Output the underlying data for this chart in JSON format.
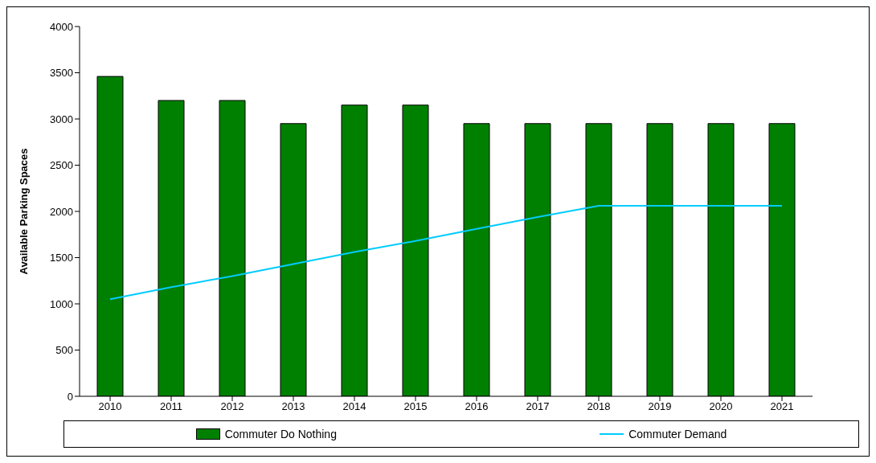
{
  "chart_data": {
    "type": "bar",
    "ylabel": "Available Parking Spaces",
    "categories": [
      "2010",
      "2011",
      "2012",
      "2013",
      "2014",
      "2015",
      "2016",
      "2017",
      "2018",
      "2019",
      "2020",
      "2021"
    ],
    "series": [
      {
        "name": "Commuter Do Nothing",
        "color": "#008000",
        "values": [
          3460,
          3200,
          3200,
          2950,
          3150,
          3150,
          2950,
          2950,
          2950,
          2950,
          2950,
          2950
        ]
      },
      {
        "name": "Commuter Demand",
        "type": "line",
        "color": "#00ccff",
        "values": [
          1050,
          1180,
          1300,
          1430,
          1560,
          1680,
          1810,
          1940,
          2060,
          2060,
          2060,
          2060
        ]
      }
    ],
    "ylim": [
      0,
      4000
    ],
    "yticks": [
      0,
      500,
      1000,
      1500,
      2000,
      2500,
      3000,
      3500,
      4000
    ],
    "legend": "bottom",
    "marker": "none"
  }
}
